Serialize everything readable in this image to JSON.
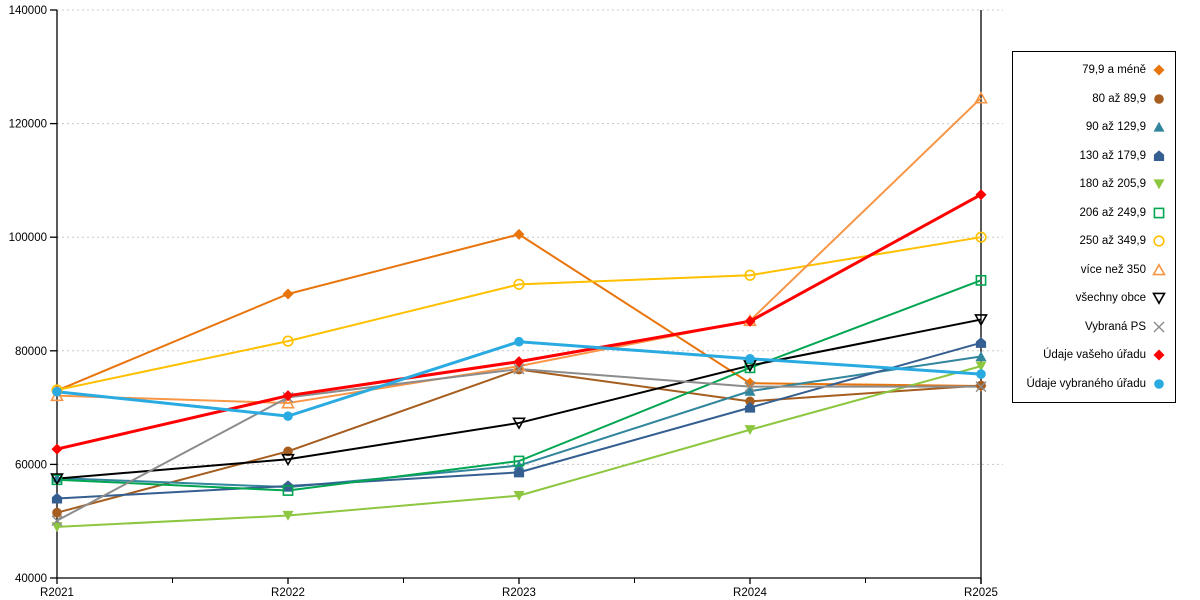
{
  "chart_data": {
    "type": "line",
    "title": "",
    "xlabel": "",
    "ylabel": "",
    "categories": [
      "R2021",
      "R2022",
      "R2023",
      "R2024",
      "R2025"
    ],
    "ylim": [
      40000,
      140000
    ],
    "y_ticks": [
      "40000",
      "60000",
      "80000",
      "100000",
      "120000",
      "140000"
    ],
    "grid": "dotted-horizontal",
    "legend_position": "right",
    "series": [
      {
        "name": "79,9 a méně",
        "color": "#E8740C",
        "marker": "diamond",
        "fill": "solid",
        "width": 2,
        "values": [
          73000,
          90000,
          100500,
          74300,
          73800
        ]
      },
      {
        "name": "80 až 89,9",
        "color": "#A55E20",
        "marker": "circle",
        "fill": "solid",
        "width": 2,
        "values": [
          51500,
          62300,
          76700,
          71100,
          73900
        ]
      },
      {
        "name": "90 až 129,9",
        "color": "#31859C",
        "marker": "triangle-up",
        "fill": "solid",
        "width": 2,
        "values": [
          57600,
          56000,
          59800,
          72900,
          79000
        ]
      },
      {
        "name": "130 až 179,9",
        "color": "#365F91",
        "marker": "pentagon",
        "fill": "solid",
        "width": 2,
        "values": [
          54000,
          56200,
          58600,
          70000,
          81400
        ]
      },
      {
        "name": "180 až 205,9",
        "color": "#8DC63F",
        "marker": "triangle-down",
        "fill": "solid",
        "width": 2,
        "values": [
          49000,
          51000,
          54500,
          66100,
          77300
        ]
      },
      {
        "name": "206 až 249,9",
        "color": "#00A651",
        "marker": "square",
        "fill": "open",
        "width": 2,
        "values": [
          57300,
          55400,
          60600,
          77000,
          92400
        ]
      },
      {
        "name": "250 až 349,9",
        "color": "#FFC000",
        "marker": "circle",
        "fill": "open",
        "width": 2,
        "values": [
          73100,
          81700,
          91700,
          93300,
          100000
        ]
      },
      {
        "name": "více než 350",
        "color": "#F79646",
        "marker": "triangle-up",
        "fill": "open",
        "width": 2,
        "values": [
          72100,
          70800,
          77300,
          85300,
          124500
        ]
      },
      {
        "name": "všechny obce",
        "color": "#000000",
        "marker": "triangle-down",
        "fill": "open",
        "width": 2,
        "values": [
          57500,
          60900,
          67300,
          77400,
          85500
        ]
      },
      {
        "name": "Vybraná PS",
        "color": "#8C8C8C",
        "marker": "x",
        "fill": "open",
        "width": 2,
        "values": [
          50100,
          71800,
          76800,
          73700,
          73700
        ]
      },
      {
        "name": "Údaje vašeho úřadu",
        "color": "#FF0000",
        "marker": "diamond",
        "fill": "solid",
        "width": 3,
        "values": [
          62700,
          72100,
          78100,
          85200,
          107500
        ]
      },
      {
        "name": "Údaje vybraného úřadu",
        "color": "#29ABE2",
        "marker": "circle",
        "fill": "solid",
        "width": 3,
        "values": [
          72800,
          68500,
          81600,
          78600,
          75900
        ]
      }
    ]
  },
  "colors": {
    "axis": "#000000",
    "gridline": "#C8C8C8",
    "background": "#FFFFFF"
  }
}
